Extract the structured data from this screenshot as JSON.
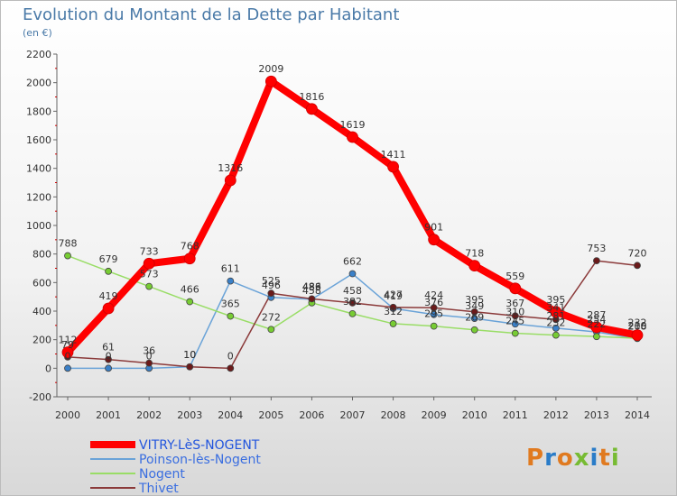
{
  "chart_data": {
    "type": "line",
    "title": "Evolution du Montant de la Dette par Habitant",
    "subtitle": "(en €)",
    "xlabel": "",
    "ylabel": "",
    "x": [
      2000,
      2001,
      2002,
      2003,
      2004,
      2005,
      2006,
      2007,
      2008,
      2009,
      2010,
      2011,
      2012,
      2013,
      2014
    ],
    "y_ticks": [
      -200,
      0,
      200,
      400,
      600,
      800,
      1000,
      1200,
      1400,
      1600,
      1800,
      2000,
      2200
    ],
    "ylim": [
      -200,
      2200
    ],
    "grid": false,
    "legend_position": "bottom-left",
    "series": [
      {
        "name": "VITRY-LèS-NOGENT",
        "color": "#ff0000",
        "marker_color": "#ff0000",
        "emphasis": true,
        "values": [
          112,
          419,
          733,
          768,
          1316,
          2009,
          1816,
          1619,
          1411,
          901,
          718,
          559,
          395,
          287,
          232
        ],
        "labels": [
          "112",
          "419",
          "733",
          "768",
          "1316",
          "2009",
          "1816",
          "1619",
          "1411",
          "901",
          "718",
          "559",
          "395",
          "287",
          "232"
        ]
      },
      {
        "name": "Poinson-lès-Nogent",
        "color": "#6aa3d8",
        "marker_color": "#3a80c8",
        "emphasis": false,
        "values": [
          0,
          0,
          0,
          10,
          611,
          496,
          483,
          662,
          419,
          376,
          349,
          310,
          281,
          254,
          208
        ],
        "labels": [
          "0",
          "0",
          "0",
          "10",
          "611",
          "496",
          "483",
          "662",
          "419",
          "376",
          "349",
          "310",
          "281",
          "254",
          "208"
        ]
      },
      {
        "name": "Nogent",
        "color": "#99dd66",
        "marker_color": "#77cc33",
        "emphasis": false,
        "values": [
          788,
          679,
          573,
          466,
          365,
          272,
          458,
          382,
          312,
          295,
          269,
          245,
          232,
          222,
          210
        ],
        "labels": [
          "788",
          "679",
          "573",
          "466",
          "365",
          "272",
          "458",
          "382",
          "312",
          "295",
          "269",
          "245",
          "232",
          "222",
          "210"
        ]
      },
      {
        "name": "Thivet",
        "color": "#8b3a3a",
        "marker_color": "#6b1a1a",
        "emphasis": false,
        "values": [
          79,
          61,
          36,
          10,
          0,
          525,
          486,
          458,
          427,
          424,
          395,
          367,
          341,
          753,
          720
        ],
        "labels": [
          "79",
          "61",
          "36",
          "10",
          "0",
          "525",
          "486",
          "458",
          "427",
          "424",
          "395",
          "367",
          "341",
          "753",
          "720"
        ]
      }
    ]
  },
  "branding": {
    "logo_text": "Proxiti",
    "letter_colors": [
      "#e07a20",
      "#2a7cc8",
      "#e07a20",
      "#77bb33",
      "#2a7cc8",
      "#e07a20",
      "#77bb33"
    ]
  }
}
